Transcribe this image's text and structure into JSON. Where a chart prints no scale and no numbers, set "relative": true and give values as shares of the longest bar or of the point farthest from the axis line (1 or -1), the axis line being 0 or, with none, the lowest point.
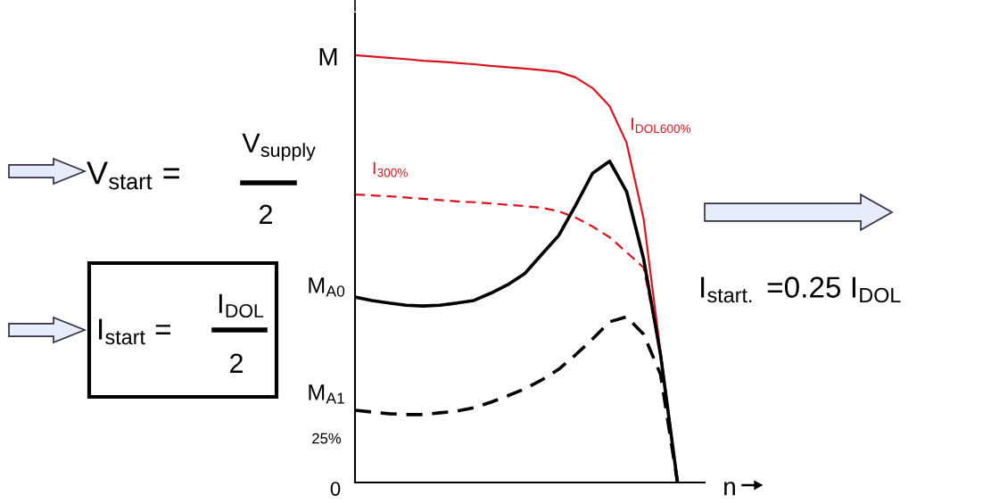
{
  "chart_data": {
    "type": "line",
    "relative": true,
    "xlabel": "n",
    "ylabel": "M",
    "legend": false,
    "marker": "none",
    "categories": [
      null,
      null,
      null,
      null,
      null,
      null,
      null,
      null,
      null,
      null,
      null,
      null,
      null,
      null,
      null,
      null,
      null,
      null,
      null,
      null,
      null
    ],
    "series": [
      {
        "name": "I$_{DOL600%}$",
        "color": "#d9141e",
        "line_style": "solid",
        "values": [
          1.0,
          0.997,
          0.994,
          0.991,
          0.987,
          0.985,
          0.982,
          0.979,
          0.975,
          0.972,
          0.969,
          0.965,
          0.961,
          0.948,
          0.923,
          0.881,
          0.795,
          0.618,
          0.305,
          0.0,
          null
        ]
      },
      {
        "name": "I$_{300%}$",
        "color": "#d9141e",
        "line_style": "dashed",
        "values": [
          0.674,
          0.672,
          0.67,
          0.667,
          0.664,
          0.661,
          0.658,
          0.656,
          0.653,
          0.65,
          0.647,
          0.643,
          0.635,
          0.62,
          0.599,
          0.574,
          0.539,
          0.503,
          0.305,
          0.0,
          null
        ]
      },
      {
        "color": "#000000",
        "line_style": "solid",
        "values": [
          0.434,
          0.426,
          0.42,
          0.415,
          0.413,
          0.415,
          0.42,
          0.426,
          0.443,
          0.463,
          0.489,
          0.534,
          0.578,
          0.649,
          0.724,
          0.752,
          0.681,
          0.524,
          0.299,
          0.0,
          null
        ]
      },
      {
        "color": "#000000",
        "line_style": "dashed",
        "values": [
          0.169,
          0.165,
          0.161,
          0.159,
          0.159,
          0.163,
          0.167,
          0.175,
          0.188,
          0.203,
          0.219,
          0.24,
          0.265,
          0.299,
          0.336,
          0.376,
          0.388,
          0.347,
          0.253,
          0.0,
          null
        ]
      }
    ],
    "annotations": [
      "M$_{A0}$",
      "M$_{A1}$",
      "25%",
      "0",
      "V$_{start}$ =",
      "V$_{supply}$",
      "2",
      "I$_{start}$ =",
      "I$_{DOL}$",
      "2",
      "I$_{start.}$ =0.25 I$_{DOL}$"
    ]
  }
}
